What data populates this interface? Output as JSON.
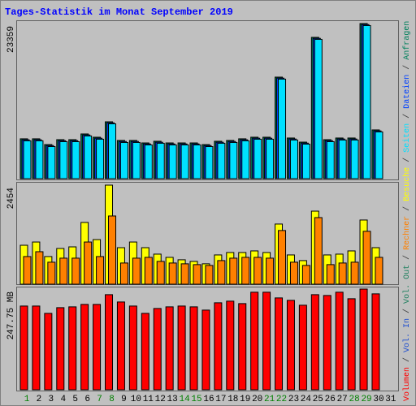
{
  "chart_data": [
    {
      "type": "bar",
      "title": "Tages-Statistik im Monat September 2019",
      "ylim": [
        0,
        23359
      ],
      "yticks": [
        23359
      ],
      "series": [
        {
          "name": "Anfragen",
          "color": "#00805c",
          "values": [
            6000,
            6000,
            5130,
            5870,
            5870,
            6730,
            6240,
            8560,
            5750,
            5750,
            5380,
            5630,
            5380,
            5380,
            5380,
            5130,
            5630,
            5750,
            6000,
            6240,
            6240,
            15290,
            6120,
            5500,
            21280,
            5870,
            6120,
            6120,
            23359,
            7340,
            null
          ]
        },
        {
          "name": "Dateien",
          "color": "#0040ff",
          "values": [
            5850,
            5850,
            4980,
            5720,
            5720,
            6580,
            6090,
            8410,
            5600,
            5600,
            5230,
            5480,
            5230,
            5230,
            5230,
            4980,
            5480,
            5600,
            5850,
            6090,
            6090,
            15140,
            5970,
            5350,
            21130,
            5720,
            5970,
            5970,
            23210,
            7190,
            null
          ]
        },
        {
          "name": "Seiten",
          "color": "#00e0ff",
          "values": [
            5700,
            5700,
            4830,
            5570,
            5570,
            6430,
            5940,
            8260,
            5450,
            5450,
            5080,
            5330,
            5080,
            5080,
            5080,
            4830,
            5330,
            5450,
            5700,
            5940,
            5940,
            14990,
            5820,
            5200,
            20980,
            5570,
            5820,
            5820,
            23060,
            7040,
            null
          ]
        }
      ]
    },
    {
      "type": "bar",
      "ylim": [
        0,
        2454
      ],
      "yticks": [
        2454
      ],
      "series": [
        {
          "name": "Besuche",
          "color": "#ffff00",
          "values": [
            965,
            1045,
            685,
            885,
            925,
            1530,
            1105,
            2454,
            905,
            1045,
            905,
            745,
            665,
            605,
            565,
            505,
            725,
            785,
            785,
            825,
            785,
            1490,
            725,
            585,
            1810,
            725,
            745,
            825,
            1590,
            905,
            null
          ]
        },
        {
          "name": "Rechner",
          "color": "#ff8000",
          "values": [
            685,
            805,
            545,
            645,
            645,
            1045,
            685,
            1690,
            525,
            645,
            665,
            565,
            525,
            505,
            485,
            465,
            585,
            645,
            665,
            665,
            645,
            1330,
            545,
            465,
            1650,
            485,
            525,
            545,
            1310,
            665,
            null
          ]
        }
      ]
    },
    {
      "type": "bar",
      "ylim": [
        0,
        247.75
      ],
      "yticks": [
        {
          "value": 247.75,
          "label": "247.75 MB"
        }
      ],
      "series": [
        {
          "name": "Volumen",
          "color": "#ff0000",
          "values": [
            206,
            206,
            188,
            202,
            204,
            210,
            210,
            234,
            216,
            206,
            188,
            200,
            204,
            206,
            204,
            196,
            214,
            218,
            212,
            240,
            240,
            226,
            220,
            208,
            234,
            232,
            240,
            224,
            247.75,
            236,
            null
          ]
        }
      ],
      "legend_only": [
        {
          "name": "Vol. In",
          "color": "#2050d0"
        },
        {
          "name": "Vol. Out",
          "color": "#208060"
        }
      ],
      "legend_separator": "/",
      "categories": [
        "1",
        "2",
        "3",
        "4",
        "5",
        "6",
        "7",
        "8",
        "9",
        "10",
        "11",
        "12",
        "13",
        "14",
        "15",
        "16",
        "17",
        "18",
        "19",
        "20",
        "21",
        "22",
        "23",
        "24",
        "25",
        "26",
        "27",
        "28",
        "29",
        "30",
        "31"
      ],
      "category_colors": [
        "#008000",
        "#000000",
        "#000000",
        "#000000",
        "#000000",
        "#000000",
        "#008000",
        "#008000",
        "#000000",
        "#000000",
        "#000000",
        "#000000",
        "#000000",
        "#008000",
        "#008000",
        "#000000",
        "#000000",
        "#000000",
        "#000000",
        "#000000",
        "#008000",
        "#008000",
        "#000000",
        "#000000",
        "#000000",
        "#000000",
        "#000000",
        "#008000",
        "#008000",
        "#000000",
        "#000000"
      ]
    }
  ]
}
